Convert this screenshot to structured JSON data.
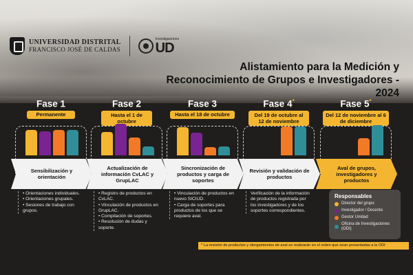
{
  "header": {
    "university_line1": "UNIVERSIDAD DISTRITAL",
    "university_line2": "FRANCISCO JOSÉ DE CALDAS",
    "ud_small": "Investigaciones",
    "ud_big": "UD",
    "title_line1": "Alistamiento para la Medición y",
    "title_line2": "Reconocimiento de Grupos e Investigadores - 2024"
  },
  "phases": [
    {
      "title": "Fase 1",
      "mark": "",
      "badge": "Permanente",
      "arrow": "Sensibilización y orientación",
      "bars": [
        0.78,
        0.72,
        0.78,
        0.78
      ],
      "notes": [
        "Orientaciones individuales.",
        "Orientaciones grupales.",
        "Sesiones de trabajo con grupos."
      ]
    },
    {
      "title": "Fase 2",
      "mark": "",
      "badge": "Hasta el 1 de octubre",
      "arrow": "Actualización de información CvLAC y GrupLAC",
      "bars": [
        0.7,
        0.95,
        0.55,
        0.28
      ],
      "notes": [
        "Registro de productos en CvLAC.",
        "Vinculación de productos en GrupLAC.",
        "Compilación de soportes.",
        "Resolución de dudas y soporte."
      ]
    },
    {
      "title": "Fase 3",
      "mark": "",
      "badge": "Hasta el 18 de octubre",
      "arrow": "Sincronización de productos y carga de soportes",
      "bars": [
        0.85,
        0.68,
        0.25,
        0.28
      ],
      "notes": [
        "Vinculación de productos en nuevo SICIUD.",
        "Carga de soportes para productos de los que se requiere aval."
      ]
    },
    {
      "title": "Fase 4",
      "mark": "*",
      "badge": "Del 19 de octubre al 12 de noviembre",
      "arrow": "Revisión y validación de productos",
      "bars": [
        0,
        0,
        0.88,
        0.88
      ],
      "notes": [
        "Verificación de la información de productos registrada por los investigadores y de los soportes correspondientes."
      ]
    },
    {
      "title": "Fase 5",
      "mark": "*",
      "badge": "Del 12 de noviembre al 6 de diciembre",
      "arrow": "Aval de grupos, investigadores y productos",
      "bars": [
        0,
        0,
        0.52,
        0.92
      ],
      "notes": []
    }
  ],
  "responsables": {
    "title": "Responsables",
    "items": [
      {
        "label": "Director del grupo",
        "color": "#f4b630"
      },
      {
        "label": "Investigador / Docente",
        "color": "#7a2393"
      },
      {
        "label": "Gestor Unidad",
        "color": "#f27a27"
      },
      {
        "label": "Oficina de Investigaciones (ODI)",
        "color": "#2f8e98"
      }
    ]
  },
  "footnote": "* La revisión de productos y otorgamientos de aval se realizarán en el orden que sean presentadas a la ODI",
  "colors": {
    "accent": "#f4b630",
    "purple": "#7a2393",
    "orange": "#f27a27",
    "teal": "#2f8e98"
  }
}
